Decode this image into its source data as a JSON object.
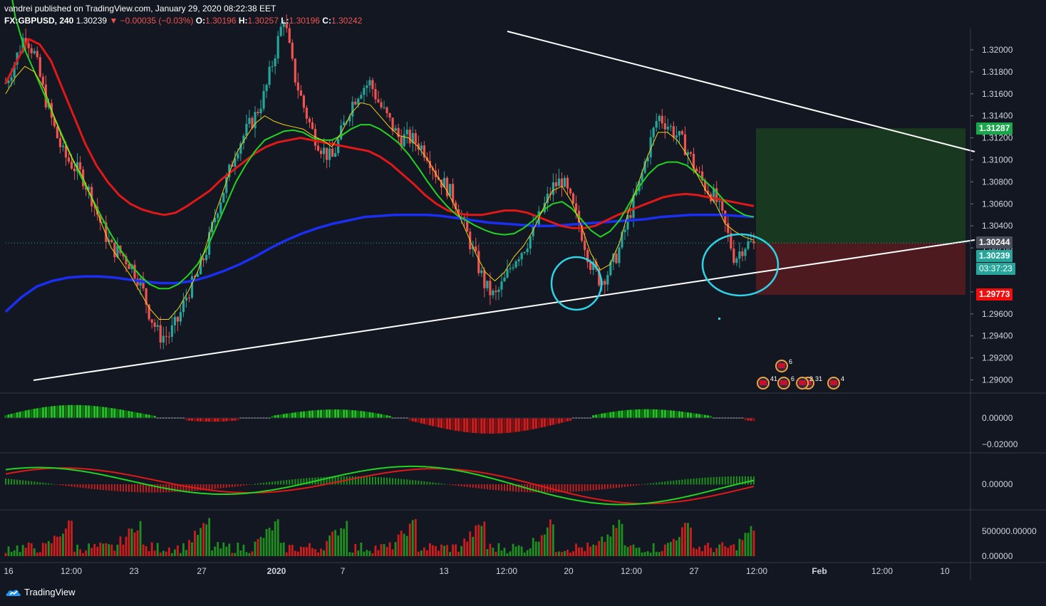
{
  "header": {
    "publisher": "vandrei published on TradingView.com, January 29, 2020 08:22:38 EET",
    "symbol": "FX:GBPUSD, 240",
    "last": "1.30239",
    "change": "▼ −0.00035 (−0.03%)",
    "o_label": "O:",
    "o": "1.30196",
    "h_label": "H:",
    "h": "1.30257",
    "l_label": "L:",
    "l": "1.30196",
    "c_label": "C:",
    "c": "1.30242"
  },
  "price_tags": {
    "target": "1.31287",
    "current_line": "1.30244",
    "last": "1.30239",
    "countdown": "03:37:23",
    "stop": "1.29773"
  },
  "colors": {
    "background": "#131722",
    "up_candle": "#26a69a",
    "down_candle": "#ef5350",
    "ema_fast": "#f5d016",
    "ema_green": "#22d322",
    "ema_red": "#e01818",
    "sma_blue": "#1b2ff2",
    "target_zone": "#18381f",
    "stop_zone": "#4d1a20",
    "circle": "#2ed3e6"
  },
  "chart_data": [
    {
      "type": "candlestick",
      "symbol": "FX:GBPUSD",
      "timeframe": "240",
      "ylim": [
        1.289,
        1.322
      ],
      "y_ticks": [
        "1.32000",
        "1.31800",
        "1.31600",
        "1.31400",
        "1.31200",
        "1.31000",
        "1.30800",
        "1.30600",
        "1.30400",
        "1.30200",
        "1.29800",
        "1.29600",
        "1.29400",
        "1.29200",
        "1.29000"
      ],
      "x_ticks": [
        "16",
        "12:00",
        "23",
        "27",
        "2020",
        "7",
        "13",
        "12:00",
        "20",
        "12:00",
        "27",
        "12:00",
        "Feb",
        "12:00",
        "10"
      ],
      "close_path": [
        1.317,
        1.319,
        1.3215,
        1.3196,
        1.316,
        1.313,
        1.3105,
        1.3095,
        1.3085,
        1.3065,
        1.304,
        1.302,
        1.3015,
        1.3005,
        1.299,
        1.296,
        1.294,
        1.294,
        1.2955,
        1.298,
        1.2995,
        1.302,
        1.3055,
        1.308,
        1.311,
        1.3125,
        1.314,
        1.316,
        1.3195,
        1.323,
        1.318,
        1.315,
        1.3125,
        1.311,
        1.31,
        1.3125,
        1.315,
        1.3165,
        1.317,
        1.315,
        1.3135,
        1.312,
        1.312,
        1.3115,
        1.3105,
        1.3085,
        1.3075,
        1.306,
        1.3035,
        1.301,
        1.2985,
        1.2975,
        1.299,
        1.301,
        1.302,
        1.3035,
        1.3055,
        1.3075,
        1.3082,
        1.306,
        1.3035,
        1.3005,
        1.299,
        1.3,
        1.302,
        1.305,
        1.3075,
        1.311,
        1.314,
        1.3132,
        1.3122,
        1.311,
        1.309,
        1.3075,
        1.3065,
        1.304,
        1.301,
        1.3023,
        1.3024
      ],
      "ema_fast": [
        1.316,
        1.3175,
        1.3185,
        1.318,
        1.3165,
        1.314,
        1.3118,
        1.31,
        1.3085,
        1.3065,
        1.3042,
        1.302,
        1.3008,
        1.2995,
        1.298,
        1.2965,
        1.2955,
        1.2955,
        1.2965,
        1.298,
        1.2998,
        1.3025,
        1.3055,
        1.308,
        1.3105,
        1.312,
        1.3133,
        1.314,
        1.3135,
        1.3132,
        1.313,
        1.3128,
        1.3122,
        1.3118,
        1.3112,
        1.3125,
        1.3142,
        1.3152,
        1.315,
        1.314,
        1.313,
        1.3122,
        1.312,
        1.3112,
        1.31,
        1.3085,
        1.3072,
        1.3055,
        1.3035,
        1.3015,
        1.2998,
        1.299,
        1.2998,
        1.3012,
        1.3022,
        1.3036,
        1.3055,
        1.3072,
        1.3076,
        1.3062,
        1.304,
        1.3015,
        1.3,
        1.3005,
        1.3025,
        1.3055,
        1.308,
        1.3105,
        1.3125,
        1.3125,
        1.3118,
        1.3105,
        1.3088,
        1.3072,
        1.306,
        1.3042,
        1.3035,
        1.303,
        1.3027
      ],
      "ema_green": [
        1.328,
        1.323,
        1.32,
        1.318,
        1.316,
        1.314,
        1.312,
        1.31,
        1.3082,
        1.3065,
        1.3048,
        1.3032,
        1.3018,
        1.3005,
        1.2995,
        1.2987,
        1.2983,
        1.2983,
        1.2987,
        1.2995,
        1.3005,
        1.302,
        1.304,
        1.306,
        1.308,
        1.3095,
        1.3108,
        1.3118,
        1.3122,
        1.3126,
        1.3127,
        1.3125,
        1.312,
        1.3118,
        1.3118,
        1.3122,
        1.3128,
        1.3132,
        1.3132,
        1.3128,
        1.3122,
        1.3115,
        1.3105,
        1.3093,
        1.308,
        1.3068,
        1.3058,
        1.305,
        1.3045,
        1.304,
        1.3036,
        1.3033,
        1.3032,
        1.3033,
        1.3038,
        1.3045,
        1.3054,
        1.306,
        1.3062,
        1.3056,
        1.3046,
        1.3036,
        1.303,
        1.3035,
        1.3045,
        1.306,
        1.3075,
        1.3087,
        1.3095,
        1.3098,
        1.3098,
        1.3095,
        1.3088,
        1.308,
        1.3072,
        1.3062,
        1.3055,
        1.305,
        1.3048
      ],
      "ema_red": [
        1.317,
        1.319,
        1.321,
        1.3205,
        1.319,
        1.3165,
        1.314,
        1.3115,
        1.3095,
        1.308,
        1.3068,
        1.306,
        1.3055,
        1.3052,
        1.305,
        1.3052,
        1.3058,
        1.3065,
        1.3072,
        1.3082,
        1.309,
        1.3098,
        1.3106,
        1.3112,
        1.3116,
        1.3118,
        1.312,
        1.3118,
        1.3116,
        1.3114,
        1.3112,
        1.311,
        1.3108,
        1.3103,
        1.3096,
        1.3087,
        1.3078,
        1.3068,
        1.306,
        1.3054,
        1.3051,
        1.305,
        1.305,
        1.3052,
        1.3054,
        1.3054,
        1.3052,
        1.3048,
        1.3044,
        1.304,
        1.3038,
        1.3038,
        1.304,
        1.3045,
        1.305,
        1.3054,
        1.3058,
        1.3062,
        1.3066,
        1.3068,
        1.3069,
        1.3068,
        1.3066,
        1.3064,
        1.3062,
        1.306,
        1.3058
      ],
      "sma_blue": [
        1.2962,
        1.2975,
        1.2985,
        1.299,
        1.2993,
        1.2994,
        1.2994,
        1.2993,
        1.2991,
        1.2989,
        1.2988,
        1.2988,
        1.299,
        1.2994,
        1.2999,
        1.3005,
        1.3012,
        1.302,
        1.3027,
        1.3033,
        1.3038,
        1.3042,
        1.3045,
        1.3048,
        1.3049,
        1.305,
        1.305,
        1.305,
        1.3049,
        1.3047,
        1.3045,
        1.3043,
        1.3042,
        1.3041,
        1.304,
        1.304,
        1.3041,
        1.3042,
        1.3043,
        1.3044,
        1.3045,
        1.3046,
        1.3048,
        1.3049,
        1.305,
        1.305,
        1.305,
        1.3049,
        1.3048
      ]
    },
    {
      "type": "bar",
      "name": "histogram",
      "ylim": [
        -0.025,
        0.012
      ],
      "y_ticks": [
        "0.00000",
        "−0.02000"
      ]
    },
    {
      "type": "line",
      "name": "oscillator",
      "y_ticks": [
        "0.00000"
      ]
    },
    {
      "type": "bar",
      "name": "volume",
      "y_ticks": [
        "500000.00000",
        "0.00000"
      ]
    }
  ],
  "events": {
    "labels": [
      "6",
      "41",
      "6",
      "31",
      "2",
      "4"
    ]
  },
  "footer": {
    "brand": "TradingView"
  }
}
